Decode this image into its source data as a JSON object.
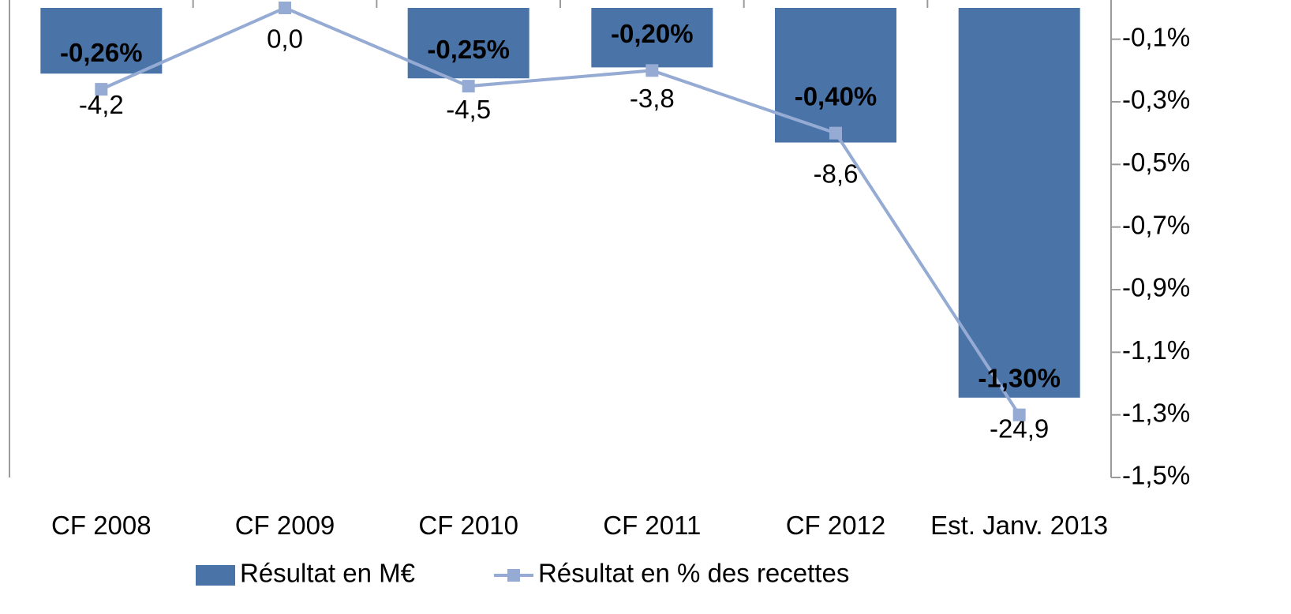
{
  "chart_data": {
    "type": "bar",
    "categories": [
      "CF 2008",
      "CF 2009",
      "CF 2010",
      "CF 2011",
      "CF 2012",
      "Est. Janv. 2013"
    ],
    "series": [
      {
        "name": "Résultat en M€",
        "type": "bar",
        "color": "#4a74a8",
        "values": [
          -4.2,
          0.0,
          -4.5,
          -3.8,
          -8.6,
          -24.9
        ],
        "value_labels": [
          "-4,2",
          "0,0",
          "-4,5",
          "-3,8",
          "-8,6",
          "-24,9"
        ]
      },
      {
        "name": "Résultat en % des recettes",
        "type": "line",
        "axis": "y2",
        "color": "#95abd3",
        "values": [
          -0.26,
          0.0,
          -0.25,
          -0.2,
          -0.4,
          -1.3
        ],
        "value_labels": [
          "-0,26%",
          null,
          "-0,25%",
          "-0,20%",
          "-0,40%",
          "-1,30%"
        ]
      }
    ],
    "ylim": [
      -30,
      0
    ],
    "y2lim": [
      -1.5,
      0
    ],
    "y2ticks": [
      {
        "value": -0.1,
        "label": "-0,1%"
      },
      {
        "value": -0.3,
        "label": "-0,3%"
      },
      {
        "value": -0.5,
        "label": "-0,5%"
      },
      {
        "value": -0.7,
        "label": "-0,7%"
      },
      {
        "value": -0.9,
        "label": "-0,9%"
      },
      {
        "value": -1.1,
        "label": "-1,1%"
      },
      {
        "value": -1.3,
        "label": "-1,3%"
      },
      {
        "value": -1.5,
        "label": "-1,5%"
      }
    ],
    "legend": "bottom"
  }
}
